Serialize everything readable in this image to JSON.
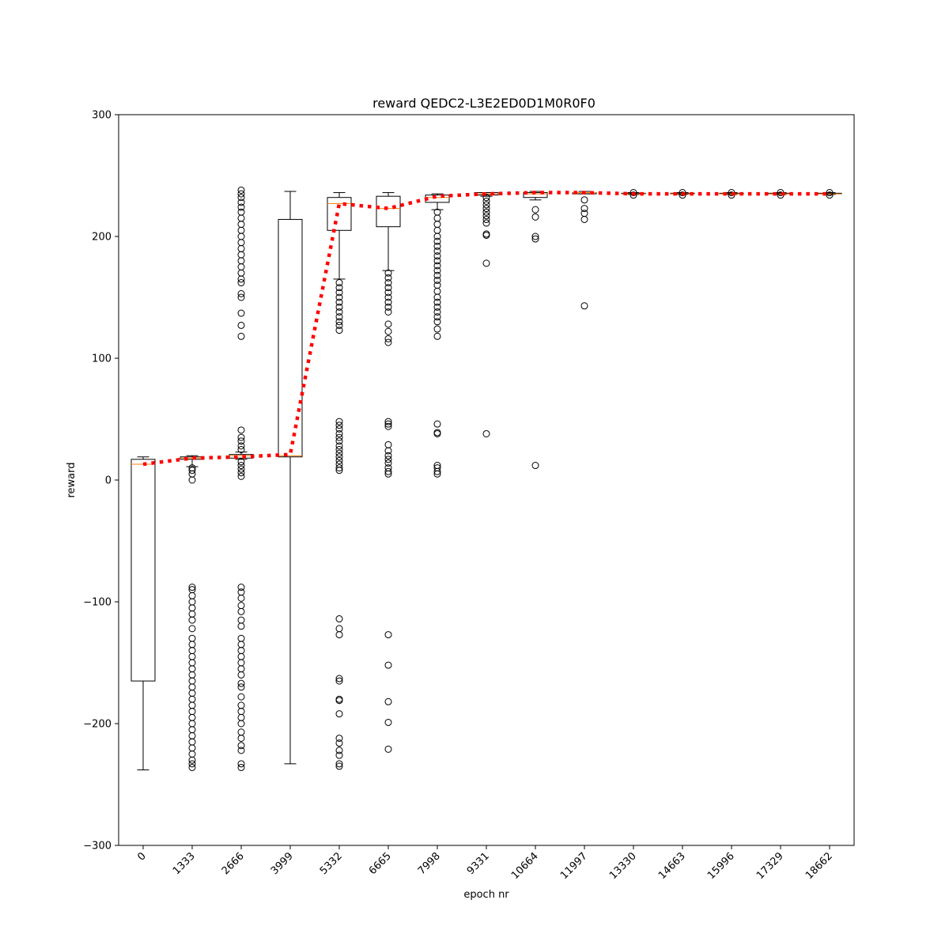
{
  "chart_data": {
    "type": "box",
    "title": "reward QEDC2-L3E2ED0D1M0R0F0",
    "xlabel": "epoch nr",
    "ylabel": "reward",
    "ylim": [
      -300,
      300
    ],
    "yticks": [
      -300,
      -200,
      -100,
      0,
      100,
      200,
      300
    ],
    "ytick_labels": [
      "−300",
      "−200",
      "−100",
      "0",
      "100",
      "200",
      "300"
    ],
    "categories": [
      "0",
      "1333",
      "2666",
      "3999",
      "5332",
      "6665",
      "7998",
      "9331",
      "10664",
      "11997",
      "13330",
      "14663",
      "15996",
      "17329",
      "18662"
    ],
    "boxes": [
      {
        "q1": -165,
        "median": 13,
        "q3": 17,
        "whislo": -238,
        "whishi": 19,
        "fliers": []
      },
      {
        "q1": 17,
        "median": 18,
        "q3": 19,
        "whislo": 11,
        "whishi": 20,
        "fliers": [
          10,
          8,
          5,
          0,
          -88,
          -90,
          -95,
          -100,
          -105,
          -110,
          -115,
          -122,
          -130,
          -135,
          -140,
          -145,
          -150,
          -155,
          -160,
          -165,
          -170,
          -175,
          -180,
          -185,
          -190,
          -195,
          -200,
          -205,
          -210,
          -215,
          -220,
          -225,
          -230,
          -233,
          -236
        ]
      },
      {
        "q1": 18,
        "median": 20,
        "q3": 21,
        "whislo": 17,
        "whishi": 23,
        "fliers": [
          238,
          235,
          232,
          228,
          224,
          220,
          215,
          210,
          205,
          200,
          195,
          190,
          185,
          180,
          175,
          170,
          165,
          162,
          153,
          150,
          137,
          127,
          118,
          41,
          35,
          32,
          28,
          25,
          15,
          12,
          9,
          6,
          3,
          -88,
          -92,
          -97,
          -103,
          -108,
          -115,
          -120,
          -130,
          -135,
          -140,
          -145,
          -150,
          -155,
          -160,
          -167,
          -170,
          -178,
          -185,
          -190,
          -195,
          -200,
          -207,
          -212,
          -218,
          -222,
          -233,
          -236
        ]
      },
      {
        "q1": 19,
        "median": 20,
        "q3": 214,
        "whislo": -233,
        "whishi": 237,
        "fliers": []
      },
      {
        "q1": 205,
        "median": 227,
        "q3": 232,
        "whislo": 165,
        "whishi": 236,
        "fliers": [
          162,
          158,
          154,
          150,
          146,
          142,
          138,
          134,
          130,
          127,
          123,
          48,
          45,
          42,
          38,
          35,
          32,
          28,
          25,
          22,
          19,
          16,
          13,
          10,
          8,
          -114,
          -122,
          -127,
          -163,
          -165,
          -180,
          -181,
          -192,
          -212,
          -216,
          -222,
          -226,
          -233,
          -235
        ]
      },
      {
        "q1": 208,
        "median": 223,
        "q3": 233,
        "whislo": 172,
        "whishi": 236,
        "fliers": [
          170,
          166,
          162,
          158,
          154,
          150,
          146,
          142,
          138,
          128,
          122,
          116,
          113,
          48,
          46,
          44,
          29,
          24,
          20,
          17,
          14,
          10,
          7,
          5,
          -127,
          -152,
          -182,
          -199,
          -221
        ]
      },
      {
        "q1": 228,
        "median": 232,
        "q3": 234,
        "whislo": 222,
        "whishi": 235,
        "fliers": [
          220,
          215,
          210,
          205,
          200,
          196,
          192,
          188,
          184,
          180,
          176,
          172,
          168,
          164,
          160,
          155,
          150,
          146,
          142,
          138,
          134,
          130,
          124,
          118,
          46,
          39,
          38,
          12,
          10,
          7,
          5
        ]
      },
      {
        "q1": 234,
        "median": 235,
        "q3": 236,
        "whislo": 233,
        "whishi": 236,
        "fliers": [
          232,
          229,
          226,
          223,
          220,
          217,
          214,
          211,
          202,
          201,
          178,
          38
        ]
      },
      {
        "q1": 232,
        "median": 235,
        "q3": 236,
        "whislo": 230,
        "whishi": 237,
        "fliers": [
          222,
          216,
          200,
          198,
          12
        ]
      },
      {
        "q1": 235,
        "median": 236,
        "q3": 236,
        "whislo": 235,
        "whishi": 237,
        "fliers": [
          230,
          223,
          219,
          214,
          143
        ]
      },
      {
        "q1": 235,
        "median": 235,
        "q3": 235.5,
        "whislo": 234.5,
        "whishi": 236,
        "fliers": [
          236,
          234
        ]
      },
      {
        "q1": 235,
        "median": 235,
        "q3": 235.5,
        "whislo": 234.5,
        "whishi": 236,
        "fliers": [
          236,
          234
        ]
      },
      {
        "q1": 235,
        "median": 235,
        "q3": 235.5,
        "whislo": 234.5,
        "whishi": 236,
        "fliers": [
          236,
          234
        ]
      },
      {
        "q1": 235,
        "median": 235,
        "q3": 235.5,
        "whislo": 234.5,
        "whishi": 236,
        "fliers": [
          236,
          234
        ]
      },
      {
        "q1": 235,
        "median": 235,
        "q3": 235.5,
        "whislo": 234.5,
        "whishi": 236,
        "fliers": [
          236,
          234
        ]
      }
    ],
    "mean_line": {
      "values": [
        13,
        18,
        19,
        21,
        227,
        223,
        233,
        235,
        236,
        236,
        235,
        235,
        235,
        235,
        235
      ],
      "color": "#ff0000",
      "style": "dotted"
    },
    "colors": {
      "box": "#000000",
      "median": "#ff7f0e",
      "mean": "#ff0000"
    },
    "grid": false,
    "legend": "none"
  }
}
